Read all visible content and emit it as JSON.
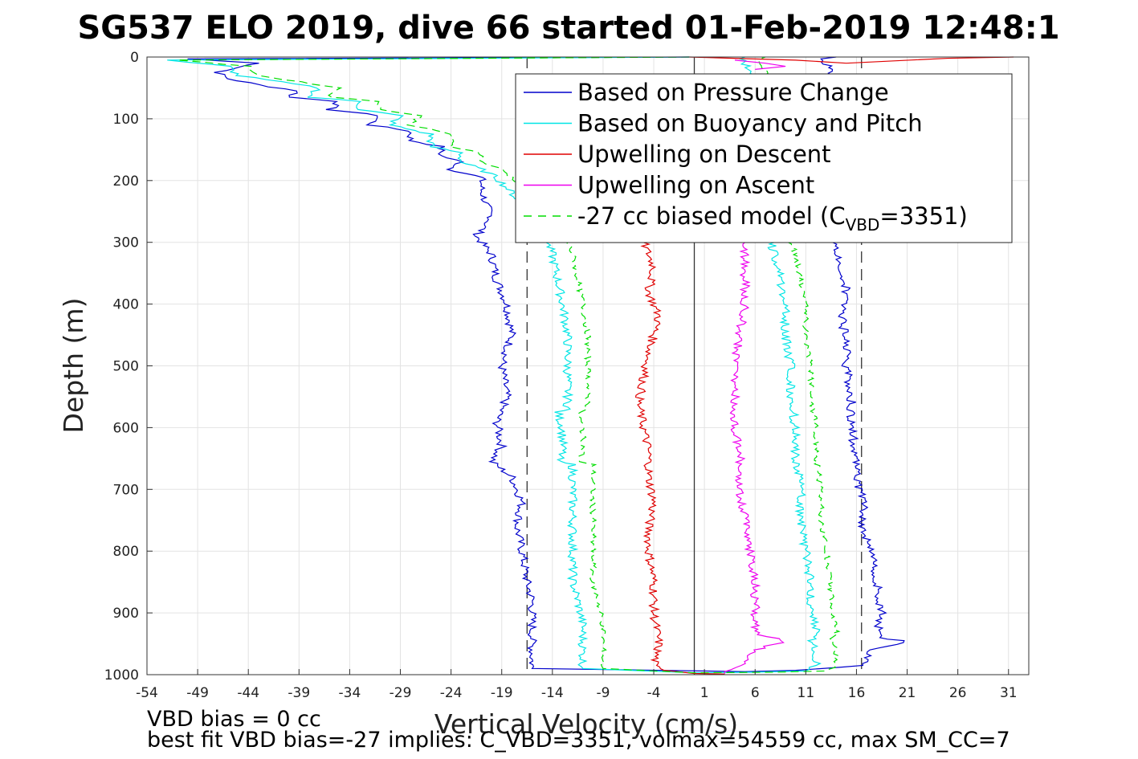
{
  "chart_data": {
    "type": "line",
    "title": "SG537 ELO 2019, dive 66 started 01-Feb-2019 12:48:1",
    "xlabel": "Vertical Velocity (cm/s)",
    "ylabel": "Depth (m)",
    "xlim": [
      -54,
      33
    ],
    "ylim": [
      0,
      1000
    ],
    "y_reversed": true,
    "grid": true,
    "legend_position": "top-right",
    "xticks": [
      -54,
      -49,
      -44,
      -39,
      -34,
      -29,
      -24,
      -19,
      -14,
      -9,
      -4,
      1,
      6,
      11,
      16,
      21,
      26,
      31
    ],
    "yticks": [
      0,
      100,
      200,
      300,
      400,
      500,
      600,
      700,
      800,
      900,
      1000
    ],
    "reference_lines": {
      "solid_x": 0,
      "dashed_x": [
        -16.5,
        16.5
      ]
    },
    "legend": {
      "entries": [
        {
          "label": "Based on Pressure Change",
          "color": "#0000cc",
          "style": "solid"
        },
        {
          "label": "Based on Buoyancy and Pitch",
          "color": "#00e5e5",
          "style": "solid"
        },
        {
          "label": "Upwelling on Descent",
          "color": "#e00000",
          "style": "solid"
        },
        {
          "label": "Upwelling on Ascent",
          "color": "#ee00ee",
          "style": "solid"
        },
        {
          "label": "-27 cc biased model (C",
          "sub": "VBD",
          "suffix": "=3351)",
          "color": "#00dd00",
          "style": "dashed"
        }
      ]
    },
    "series": [
      {
        "name": "Based on Pressure Change",
        "color": "#0000cc",
        "dashed": false,
        "points": [
          [
            -0.5,
            0
          ],
          [
            -50,
            3
          ],
          [
            -43,
            10
          ],
          [
            -47,
            25
          ],
          [
            -46,
            35
          ],
          [
            -43,
            45
          ],
          [
            -39,
            55
          ],
          [
            -40,
            65
          ],
          [
            -35,
            72
          ],
          [
            -36,
            85
          ],
          [
            -31,
            95
          ],
          [
            -32,
            110
          ],
          [
            -28,
            120
          ],
          [
            -28,
            135
          ],
          [
            -25,
            145
          ],
          [
            -25,
            160
          ],
          [
            -23,
            170
          ],
          [
            -24,
            182
          ],
          [
            -21,
            195
          ],
          [
            -21,
            215
          ],
          [
            -20.5,
            240
          ],
          [
            -20,
            260
          ],
          [
            -21.5,
            290
          ],
          [
            -20,
            320
          ],
          [
            -19.5,
            360
          ],
          [
            -18.5,
            400
          ],
          [
            -18,
            450
          ],
          [
            -19,
            500
          ],
          [
            -18.5,
            550
          ],
          [
            -19.5,
            590
          ],
          [
            -19,
            630
          ],
          [
            -20,
            655
          ],
          [
            -18,
            680
          ],
          [
            -17,
            720
          ],
          [
            -17.5,
            760
          ],
          [
            -17,
            800
          ],
          [
            -16.5,
            850
          ],
          [
            -16,
            880
          ],
          [
            -16,
            920
          ],
          [
            -16,
            960
          ],
          [
            -16,
            990
          ],
          [
            5,
            995
          ],
          [
            10,
            993
          ],
          [
            17,
            985
          ],
          [
            17.5,
            960
          ],
          [
            21,
            945
          ],
          [
            18,
            940
          ],
          [
            18.5,
            900
          ],
          [
            18,
            850
          ],
          [
            17.5,
            800
          ],
          [
            16.5,
            760
          ],
          [
            17,
            720
          ],
          [
            16,
            690
          ],
          [
            16,
            650
          ],
          [
            15.5,
            600
          ],
          [
            15.5,
            550
          ],
          [
            15,
            500
          ],
          [
            15,
            460
          ],
          [
            14.5,
            420
          ],
          [
            15,
            380
          ],
          [
            14.5,
            340
          ],
          [
            14,
            300
          ],
          [
            14,
            60
          ],
          [
            13.5,
            20
          ],
          [
            12.5,
            3
          ],
          [
            14,
            0
          ]
        ]
      },
      {
        "name": "Based on Buoyancy and Pitch",
        "color": "#00e5e5",
        "dashed": false,
        "points": [
          [
            -0.5,
            0
          ],
          [
            -52,
            5
          ],
          [
            -46,
            15
          ],
          [
            -45,
            30
          ],
          [
            -41,
            40
          ],
          [
            -37,
            50
          ],
          [
            -38,
            65
          ],
          [
            -33,
            72
          ],
          [
            -33,
            85
          ],
          [
            -29,
            95
          ],
          [
            -30,
            110
          ],
          [
            -26,
            125
          ],
          [
            -26,
            145
          ],
          [
            -23,
            155
          ],
          [
            -23,
            170
          ],
          [
            -21,
            182
          ],
          [
            -19.5,
            195
          ],
          [
            -18,
            220
          ],
          [
            -16.5,
            250
          ],
          [
            -15,
            280
          ],
          [
            -14,
            320
          ],
          [
            -13.5,
            360
          ],
          [
            -13,
            400
          ],
          [
            -12.5,
            450
          ],
          [
            -12.5,
            500
          ],
          [
            -12.5,
            550
          ],
          [
            -12.5,
            570
          ],
          [
            -13.5,
            575
          ],
          [
            -13,
            600
          ],
          [
            -13,
            640
          ],
          [
            -13.5,
            655
          ],
          [
            -12,
            660
          ],
          [
            -12,
            700
          ],
          [
            -12,
            750
          ],
          [
            -12,
            800
          ],
          [
            -12,
            850
          ],
          [
            -11.5,
            880
          ],
          [
            -11,
            920
          ],
          [
            -11,
            960
          ],
          [
            -11,
            990
          ],
          [
            0,
            997
          ],
          [
            6,
            996
          ],
          [
            11,
            994
          ],
          [
            12,
            985
          ],
          [
            12,
            960
          ],
          [
            11.5,
            945
          ],
          [
            12,
            930
          ],
          [
            11.5,
            900
          ],
          [
            11.5,
            850
          ],
          [
            11,
            800
          ],
          [
            10.5,
            750
          ],
          [
            10.5,
            700
          ],
          [
            10,
            650
          ],
          [
            10,
            600
          ],
          [
            9.5,
            550
          ],
          [
            9.5,
            500
          ],
          [
            9,
            450
          ],
          [
            9,
            400
          ],
          [
            8.5,
            360
          ],
          [
            8,
            320
          ],
          [
            7.5,
            300
          ],
          [
            7,
            60
          ],
          [
            5.5,
            20
          ],
          [
            4.5,
            3
          ],
          [
            5,
            0
          ]
        ]
      },
      {
        "name": "Upwelling on Descent",
        "color": "#e00000",
        "dashed": false,
        "points": [
          [
            -5,
            300
          ],
          [
            -4,
            340
          ],
          [
            -4.5,
            380
          ],
          [
            -3.5,
            420
          ],
          [
            -4,
            450
          ],
          [
            -4.5,
            480
          ],
          [
            -5,
            520
          ],
          [
            -5.5,
            560
          ],
          [
            -5,
            600
          ],
          [
            -4.5,
            640
          ],
          [
            -4.5,
            680
          ],
          [
            -4,
            720
          ],
          [
            -4.5,
            760
          ],
          [
            -4.5,
            800
          ],
          [
            -4,
            850
          ],
          [
            -4,
            900
          ],
          [
            -3.5,
            950
          ],
          [
            -4,
            985
          ],
          [
            -3,
            993
          ],
          [
            0,
            998
          ],
          [
            3,
            999
          ]
        ]
      },
      {
        "name": "Upwelling on Ascent",
        "color": "#ee00ee",
        "dashed": false,
        "points": [
          [
            3,
            998
          ],
          [
            3,
            995
          ],
          [
            5,
            985
          ],
          [
            6,
            960
          ],
          [
            9,
            945
          ],
          [
            6,
            935
          ],
          [
            6,
            900
          ],
          [
            6,
            850
          ],
          [
            5.5,
            800
          ],
          [
            5,
            750
          ],
          [
            4.5,
            700
          ],
          [
            4.5,
            650
          ],
          [
            4,
            600
          ],
          [
            4,
            550
          ],
          [
            4,
            500
          ],
          [
            4.5,
            450
          ],
          [
            5,
            400
          ],
          [
            5,
            350
          ],
          [
            5,
            300
          ]
        ]
      },
      {
        "name": "-27 cc biased model",
        "color": "#00dd00",
        "dashed": true,
        "points": [
          [
            -0.5,
            0
          ],
          [
            -51,
            5
          ],
          [
            -44,
            15
          ],
          [
            -43,
            30
          ],
          [
            -39,
            40
          ],
          [
            -35,
            50
          ],
          [
            -36,
            65
          ],
          [
            -31,
            72
          ],
          [
            -31,
            85
          ],
          [
            -27,
            95
          ],
          [
            -28,
            110
          ],
          [
            -24,
            125
          ],
          [
            -24,
            145
          ],
          [
            -21,
            155
          ],
          [
            -21,
            170
          ],
          [
            -19,
            182
          ],
          [
            -18,
            195
          ],
          [
            -16,
            220
          ],
          [
            -14.5,
            250
          ],
          [
            -13,
            280
          ],
          [
            -12,
            320
          ],
          [
            -11.5,
            360
          ],
          [
            -11,
            400
          ],
          [
            -10.5,
            450
          ],
          [
            -10.5,
            500
          ],
          [
            -10.5,
            550
          ],
          [
            -10.5,
            570
          ],
          [
            -11.5,
            575
          ],
          [
            -11,
            600
          ],
          [
            -11,
            640
          ],
          [
            -11.5,
            655
          ],
          [
            -10,
            660
          ],
          [
            -10,
            700
          ],
          [
            -10,
            750
          ],
          [
            -10,
            800
          ],
          [
            -10,
            850
          ],
          [
            -9.5,
            880
          ],
          [
            -9,
            920
          ],
          [
            -9,
            960
          ],
          [
            -9,
            990
          ],
          [
            0,
            997
          ],
          [
            8,
            996
          ],
          [
            13,
            994
          ],
          [
            14,
            985
          ],
          [
            14,
            960
          ],
          [
            13.5,
            945
          ],
          [
            14,
            930
          ],
          [
            13.5,
            900
          ],
          [
            13.5,
            850
          ],
          [
            13,
            800
          ],
          [
            12.5,
            750
          ],
          [
            12.5,
            700
          ],
          [
            12,
            650
          ],
          [
            12,
            600
          ],
          [
            11.5,
            550
          ],
          [
            11.5,
            500
          ],
          [
            11,
            450
          ],
          [
            11,
            400
          ],
          [
            10.5,
            360
          ],
          [
            10,
            320
          ],
          [
            9.5,
            300
          ],
          [
            8,
            60
          ],
          [
            7,
            20
          ],
          [
            6.5,
            3
          ],
          [
            7,
            0
          ]
        ]
      }
    ],
    "upwelling_descent_near_surface": [
      [
        -0.5,
        0
      ],
      [
        10,
        5
      ],
      [
        15,
        10
      ],
      [
        25,
        2
      ],
      [
        31.5,
        0
      ]
    ],
    "upwelling_ascent_near_surface": [
      [
        4,
        5
      ],
      [
        7,
        10
      ],
      [
        9,
        15
      ],
      [
        6,
        20
      ]
    ]
  },
  "footer": {
    "line1": "VBD bias = 0 cc",
    "line2": "best fit VBD bias=-27 implies: C_VBD=3351, volmax=54559 cc, max SM_CC=7"
  }
}
